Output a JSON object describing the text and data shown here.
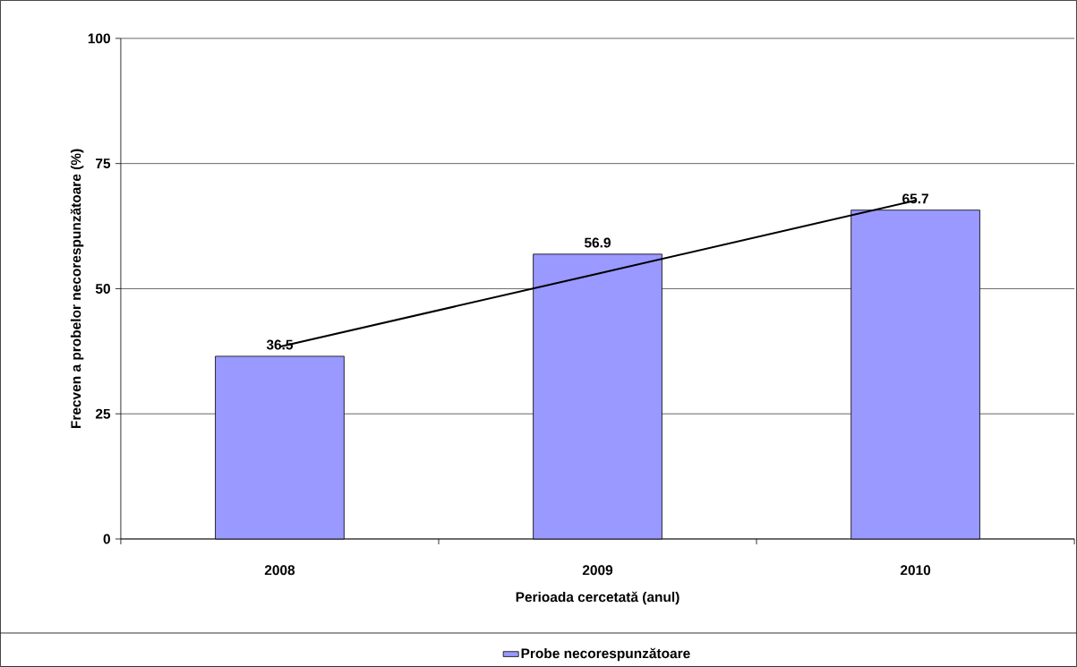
{
  "chart_data": {
    "type": "bar",
    "xlabel": "Perioada cercetată (anul)",
    "ylabel": "Frecven a probelor necorespunzătoare (%)",
    "categories": [
      "2008",
      "2009",
      "2010"
    ],
    "series": [
      {
        "name": "Probe necorespunzătoare",
        "color": "#9999ff",
        "values": [
          36.5,
          56.9,
          65.7
        ],
        "value_labels": [
          "36.5",
          "56.9",
          "65.7"
        ]
      },
      {
        "type": "line",
        "color": "#000000",
        "values": [
          38.4,
          53.0,
          67.6
        ],
        "marker": "none"
      }
    ],
    "ylim": [
      0,
      100
    ],
    "yticks": [
      0,
      25,
      50,
      75,
      100
    ],
    "grid": "y",
    "legend": "bottom"
  }
}
